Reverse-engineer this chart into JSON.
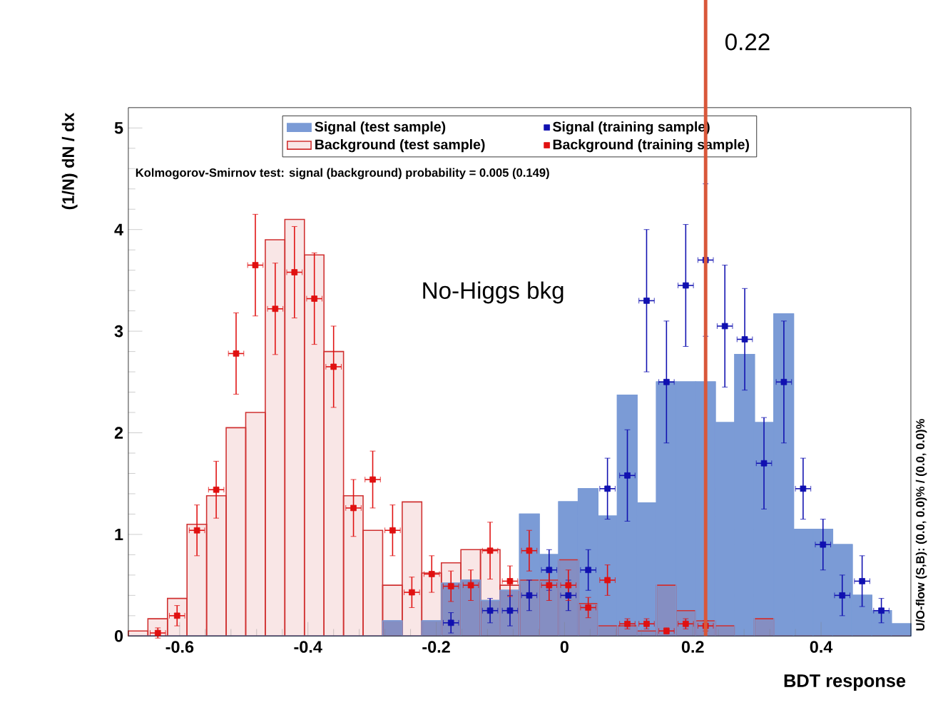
{
  "chart_data": {
    "type": "histogram",
    "xlabel": "BDT response",
    "ylabel": "(1/N) dN / dx",
    "bins": [
      -0.68,
      -0.6495,
      -0.619,
      -0.5885,
      -0.558,
      -0.5275,
      -0.497,
      -0.4665,
      -0.436,
      -0.4055,
      -0.375,
      -0.3445,
      -0.314,
      -0.2835,
      -0.253,
      -0.2225,
      -0.192,
      -0.1615,
      -0.131,
      -0.1005,
      -0.07,
      -0.0395,
      -0.009,
      0.0215,
      0.052,
      0.0825,
      0.113,
      0.1435,
      0.174,
      0.2045,
      0.235,
      0.2655,
      0.296,
      0.3265,
      0.357,
      0.3875,
      0.418,
      0.4485,
      0.479,
      0.5095,
      0.54
    ],
    "xlim": [
      -0.68,
      0.54
    ],
    "ylim": [
      0,
      5.2
    ],
    "xticks": [
      -0.6,
      -0.4,
      -0.2,
      0,
      0.2,
      0.4
    ],
    "yticks": [
      0,
      1,
      2,
      3,
      4,
      5
    ],
    "marker": "square",
    "legend": "top",
    "series": [
      {
        "name": "Signal (test sample)",
        "color": "#7b9bd6",
        "values": [
          0,
          0,
          0,
          0,
          0,
          0,
          0,
          0,
          0,
          0,
          0,
          0,
          0,
          0.15,
          0,
          0.15,
          0.52,
          0.55,
          0.35,
          0.45,
          1.2,
          0.8,
          1.32,
          1.45,
          1.18,
          2.37,
          1.31,
          2.5,
          2.5,
          2.5,
          2.1,
          2.77,
          2.1,
          3.17,
          1.05,
          1.05,
          0.9,
          0.4,
          0.25,
          0.12
        ]
      },
      {
        "name": "Background (test sample)",
        "color": "#d03030",
        "values": [
          0.05,
          0.17,
          0.37,
          1.1,
          1.38,
          2.05,
          2.2,
          3.9,
          4.1,
          3.75,
          2.8,
          1.38,
          1.04,
          0.5,
          1.32,
          0.62,
          0.72,
          0.85,
          0.85,
          0.5,
          0.55,
          0.55,
          0.75,
          0.32,
          0.1,
          0.1,
          0.05,
          0.5,
          0.25,
          0.15,
          0.1,
          0,
          0.17,
          0,
          0,
          0,
          0,
          0,
          0,
          0
        ]
      },
      {
        "name": "Signal (training sample)",
        "type": "scatter",
        "color": "#1010b0",
        "x": [
          -0.177,
          -0.116,
          -0.085,
          -0.055,
          -0.024,
          0.006,
          0.037,
          0.067,
          0.098,
          0.128,
          0.159,
          0.189,
          0.22,
          0.25,
          0.281,
          0.311,
          0.342,
          0.372,
          0.403,
          0.433,
          0.464,
          0.494
        ],
        "values": [
          0.13,
          0.25,
          0.25,
          0.4,
          0.65,
          0.4,
          0.65,
          1.45,
          1.58,
          3.3,
          2.5,
          3.45,
          3.7,
          3.05,
          2.92,
          1.7,
          2.5,
          1.45,
          0.9,
          0.4,
          0.54,
          0.25
        ],
        "errors": [
          0.1,
          0.12,
          0.15,
          0.15,
          0.2,
          0.15,
          0.2,
          0.3,
          0.45,
          0.7,
          0.6,
          0.6,
          0.75,
          0.6,
          0.5,
          0.45,
          0.6,
          0.3,
          0.25,
          0.2,
          0.25,
          0.12
        ],
        "xerrors": [
          0.012,
          0.012,
          0.012,
          0.012,
          0.012,
          0.012,
          0.012,
          0.012,
          0.012,
          0.012,
          0.012,
          0.012,
          0.012,
          0.012,
          0.012,
          0.012,
          0.012,
          0.012,
          0.012,
          0.012,
          0.012,
          0.012
        ]
      },
      {
        "name": "Background (training sample)",
        "type": "scatter",
        "color": "#e01010",
        "x": [
          -0.634,
          -0.604,
          -0.573,
          -0.543,
          -0.512,
          -0.482,
          -0.451,
          -0.421,
          -0.39,
          -0.36,
          -0.329,
          -0.299,
          -0.268,
          -0.238,
          -0.207,
          -0.177,
          -0.146,
          -0.116,
          -0.085,
          -0.055,
          -0.024,
          0.006,
          0.037,
          0.067,
          0.098,
          0.128,
          0.159,
          0.189,
          0.22
        ],
        "values": [
          0.03,
          0.2,
          1.04,
          1.44,
          2.78,
          3.65,
          3.22,
          3.58,
          3.32,
          2.65,
          1.26,
          1.54,
          1.04,
          0.43,
          0.61,
          0.49,
          0.5,
          0.84,
          0.54,
          0.84,
          0.5,
          0.5,
          0.28,
          0.55,
          0.12,
          0.12,
          0.05,
          0.12,
          0.1
        ],
        "errors": [
          0.05,
          0.1,
          0.25,
          0.28,
          0.4,
          0.5,
          0.45,
          0.45,
          0.45,
          0.4,
          0.28,
          0.28,
          0.25,
          0.15,
          0.18,
          0.15,
          0.15,
          0.28,
          0.15,
          0.2,
          0.15,
          0.15,
          0.1,
          0.15,
          0.05,
          0.05,
          0.03,
          0.05,
          0.05
        ],
        "xerrors": [
          0.012,
          0.012,
          0.012,
          0.012,
          0.012,
          0.012,
          0.012,
          0.012,
          0.012,
          0.012,
          0.012,
          0.012,
          0.012,
          0.012,
          0.012,
          0.012,
          0.012,
          0.012,
          0.012,
          0.012,
          0.012,
          0.012,
          0.012,
          0.012,
          0.012,
          0.012,
          0.012,
          0.012,
          0.012
        ]
      }
    ],
    "ref_lines": [
      {
        "axis": "x",
        "value": 0.22,
        "label": "0.22",
        "color": "#d9573a"
      }
    ],
    "annotations": [
      "Kolmogorov-Smirnov test: signal (background) probability = 0.005 (0.149)",
      "No-Higgs bkg",
      "U/O-flow (S,B): (0.0, 0.0)% / (0.0, 0.0)%"
    ]
  }
}
